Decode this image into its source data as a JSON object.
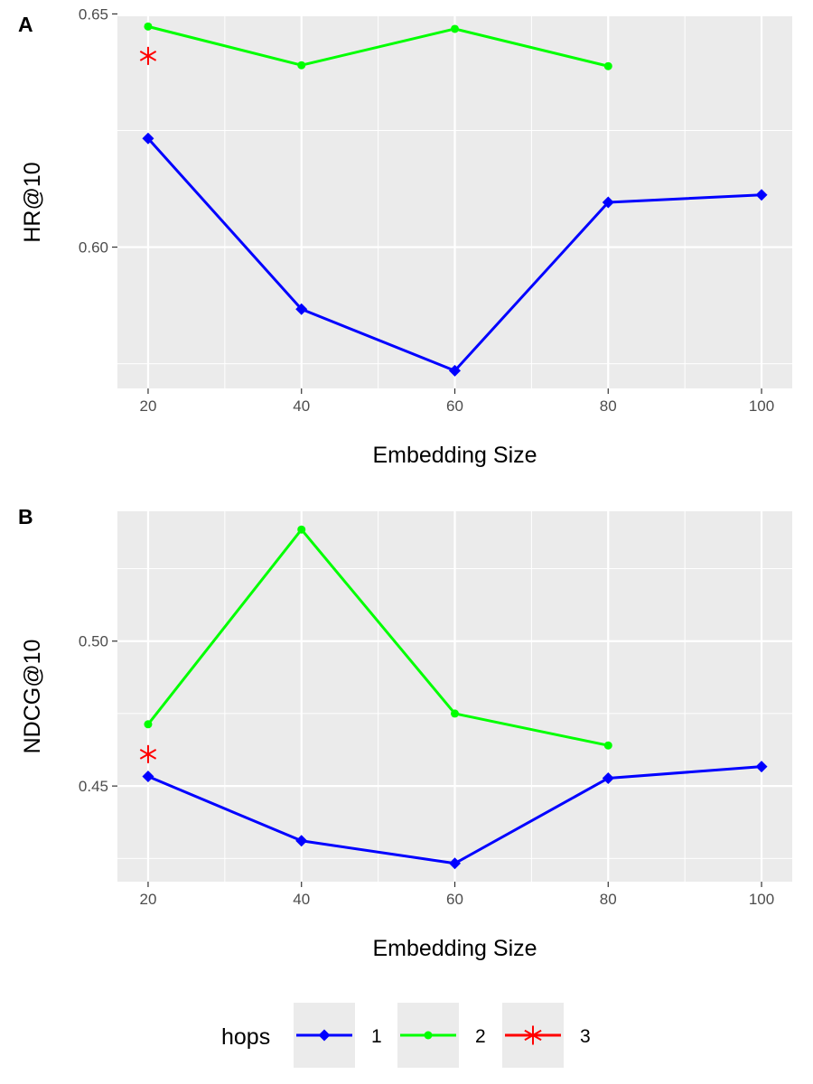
{
  "chart_data": [
    {
      "type": "line",
      "tag": "A",
      "xlabel": "Embedding Size",
      "ylabel": "HR@10",
      "x_ticks": [
        20,
        40,
        60,
        80,
        100
      ],
      "x_tick_labels": [
        "20",
        "40",
        "60",
        "80",
        "100"
      ],
      "y_ticks": [
        0.6,
        0.65
      ],
      "y_tick_labels": [
        "0.60",
        "0.65"
      ],
      "xlim": [
        16,
        104
      ],
      "ylim": [
        0.5697,
        0.6495
      ],
      "grid": true,
      "series": [
        {
          "name": "1",
          "color": "#0000ff",
          "marker": "diamond",
          "x": [
            20,
            40,
            60,
            80,
            100
          ],
          "y": [
            0.6233,
            0.5867,
            0.5735,
            0.6096,
            0.6112
          ]
        },
        {
          "name": "2",
          "color": "#00ff00",
          "marker": "circle",
          "x": [
            20,
            40,
            60,
            80
          ],
          "y": [
            0.6473,
            0.639,
            0.6468,
            0.6388
          ]
        },
        {
          "name": "3",
          "color": "#ff0000",
          "marker": "asterisk",
          "x": [
            20
          ],
          "y": [
            0.641
          ]
        }
      ]
    },
    {
      "type": "line",
      "tag": "B",
      "xlabel": "Embedding Size",
      "ylabel": "NDCG@10",
      "x_ticks": [
        20,
        40,
        60,
        80,
        100
      ],
      "x_tick_labels": [
        "20",
        "40",
        "60",
        "80",
        "100"
      ],
      "y_ticks": [
        0.45,
        0.5
      ],
      "y_tick_labels": [
        "0.45",
        "0.50"
      ],
      "xlim": [
        16,
        104
      ],
      "ylim": [
        0.417,
        0.5448
      ],
      "grid": true,
      "series": [
        {
          "name": "1",
          "color": "#0000ff",
          "marker": "diamond",
          "x": [
            20,
            40,
            60,
            80,
            100
          ],
          "y": [
            0.4533,
            0.4311,
            0.4233,
            0.4527,
            0.4567
          ]
        },
        {
          "name": "2",
          "color": "#00ff00",
          "marker": "circle",
          "x": [
            20,
            40,
            60,
            80
          ],
          "y": [
            0.4713,
            0.5385,
            0.475,
            0.464
          ]
        },
        {
          "name": "3",
          "color": "#ff0000",
          "marker": "asterisk",
          "x": [
            20
          ],
          "y": [
            0.461
          ]
        }
      ]
    }
  ],
  "legend": {
    "title": "hops",
    "position": "bottom",
    "items": [
      {
        "label": "1",
        "color": "#0000ff",
        "marker": "diamond"
      },
      {
        "label": "2",
        "color": "#00ff00",
        "marker": "circle"
      },
      {
        "label": "3",
        "color": "#ff0000",
        "marker": "asterisk"
      }
    ]
  }
}
